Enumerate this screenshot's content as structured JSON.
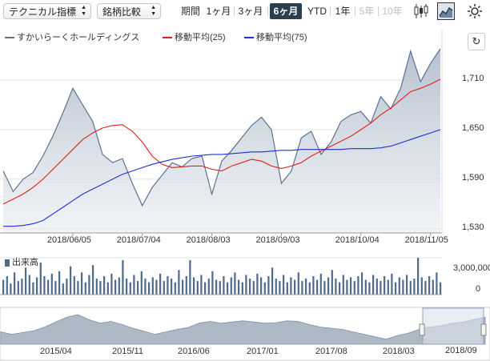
{
  "toolbar": {
    "chart_type_select": "テクニカル指標",
    "compare_select": "銘柄比較",
    "period_label": "期間",
    "periods": [
      {
        "label": "1ヶ月",
        "state": "normal"
      },
      {
        "label": "3ヶ月",
        "state": "normal"
      },
      {
        "label": "6ヶ月",
        "state": "active"
      },
      {
        "label": "YTD",
        "state": "normal"
      },
      {
        "label": "1年",
        "state": "normal"
      },
      {
        "label": "5年",
        "state": "disabled"
      },
      {
        "label": "10年",
        "state": "disabled"
      }
    ],
    "icons": [
      "candlestick-chart-icon",
      "area-chart-icon",
      "settings-gear-icon"
    ]
  },
  "legend": {
    "price": "すかいらーくホールディングス",
    "ma25": "移動平均(25)",
    "ma75": "移動平均(75)"
  },
  "colors": {
    "price_line": "#5a7391",
    "price_fill_top": "#a9b6c6",
    "ma25": "#e0201a",
    "ma75": "#1e2fd0",
    "volume_bar": "#4e6a8c",
    "active_tab": "#2c3e50",
    "navigator_fill": "#aeb9c6"
  },
  "chart_data": [
    {
      "type": "line",
      "x": [
        "2018/05/07",
        "2018/05/10",
        "2018/05/15",
        "2018/05/18",
        "2018/05/23",
        "2018/05/28",
        "2018/06/01",
        "2018/06/06",
        "2018/06/11",
        "2018/06/14",
        "2018/06/19",
        "2018/06/22",
        "2018/06/27",
        "2018/07/02",
        "2018/07/05",
        "2018/07/10",
        "2018/07/13",
        "2018/07/18",
        "2018/07/23",
        "2018/07/26",
        "2018/07/31",
        "2018/08/03",
        "2018/08/08",
        "2018/08/13",
        "2018/08/16",
        "2018/08/21",
        "2018/08/24",
        "2018/08/29",
        "2018/09/03",
        "2018/09/06",
        "2018/09/11",
        "2018/09/14",
        "2018/09/19",
        "2018/09/24",
        "2018/09/28",
        "2018/10/03",
        "2018/10/08",
        "2018/10/11",
        "2018/10/16",
        "2018/10/19",
        "2018/10/24",
        "2018/10/29",
        "2018/11/01",
        "2018/11/05",
        "2018/11/07"
      ],
      "series": [
        {
          "name": "すかいらーくホールディングス",
          "values": [
            1600,
            1575,
            1590,
            1598,
            1618,
            1642,
            1670,
            1700,
            1680,
            1660,
            1620,
            1610,
            1615,
            1585,
            1558,
            1580,
            1595,
            1610,
            1605,
            1615,
            1618,
            1572,
            1612,
            1625,
            1640,
            1655,
            1665,
            1650,
            1585,
            1600,
            1640,
            1648,
            1620,
            1635,
            1660,
            1668,
            1672,
            1658,
            1690,
            1675,
            1700,
            1745,
            1708,
            1730,
            1748
          ]
        },
        {
          "name": "移動平均(25)",
          "values": [
            1560,
            1566,
            1572,
            1580,
            1590,
            1602,
            1614,
            1626,
            1638,
            1646,
            1652,
            1655,
            1656,
            1648,
            1635,
            1618,
            1608,
            1604,
            1605,
            1606,
            1606,
            1602,
            1600,
            1606,
            1610,
            1614,
            1612,
            1606,
            1603,
            1606,
            1610,
            1618,
            1624,
            1630,
            1636,
            1642,
            1650,
            1658,
            1668,
            1676,
            1686,
            1696,
            1700,
            1705,
            1711
          ]
        },
        {
          "name": "移動平均(75)",
          "values": [
            1533,
            1533,
            1534,
            1536,
            1540,
            1548,
            1556,
            1564,
            1572,
            1578,
            1584,
            1590,
            1596,
            1600,
            1604,
            1608,
            1611,
            1614,
            1616,
            1618,
            1619,
            1620,
            1620,
            1621,
            1622,
            1623,
            1623,
            1624,
            1625,
            1625,
            1626,
            1626,
            1626,
            1626,
            1626,
            1627,
            1627,
            1627,
            1628,
            1630,
            1634,
            1638,
            1642,
            1646,
            1650
          ]
        }
      ],
      "y_ticks": [
        "1,530",
        "1,590",
        "1,650",
        "1,710"
      ],
      "ylim": [
        1525,
        1772
      ],
      "x_ticks": [
        "2018/06/05",
        "2018/07/04",
        "2018/08/03",
        "2018/09/03",
        "2018/10/04",
        "2018/11/05"
      ],
      "grid": true,
      "legend": "top-left"
    },
    {
      "type": "bar",
      "title": "出来高",
      "values": [
        1200000,
        1500000,
        900000,
        1800000,
        1100000,
        1300000,
        2200000,
        1600000,
        1000000,
        1400000,
        2600000,
        1500000,
        1200000,
        1700000,
        1100000,
        1900000,
        900000,
        1300000,
        2300000,
        1500000,
        1100000,
        1800000,
        1000000,
        1600000,
        2400000,
        1300000,
        1100000,
        1500000,
        1000000,
        1700000,
        1200000,
        1400000,
        2800000,
        1300000,
        1000000,
        1600000,
        1100000,
        1900000,
        1300000,
        1000000,
        1400000,
        1200000,
        1700000,
        1100000,
        1500000,
        1300000,
        1000000,
        2000000,
        1200000,
        1500000,
        2800000,
        1400000,
        1100000,
        1600000,
        1000000,
        1300000,
        1900000,
        1200000,
        1100000,
        1500000,
        1000000,
        1400000,
        1800000,
        1200000,
        1000000,
        1600000,
        1300000,
        1100000,
        1700000,
        1400000,
        1000000,
        1500000,
        2200000,
        1300000,
        1100000,
        1600000,
        1000000,
        1400000,
        1200000,
        1800000,
        1100000,
        1300000,
        1000000,
        1500000,
        1200000,
        1700000,
        1100000,
        1400000,
        2000000,
        1300000,
        1000000,
        1600000,
        1200000,
        1400000,
        1100000,
        1500000,
        1800000,
        1200000,
        1000000,
        1600000,
        1300000,
        1100000,
        1500000,
        1200000,
        1700000,
        1000000,
        1400000,
        1200000,
        1600000,
        1100000,
        1300000,
        3000000,
        1400000,
        1100000,
        1500000,
        1200000,
        1800000,
        1000000
      ],
      "y_ticks": [
        "0",
        "3,000,000"
      ],
      "ylim": [
        0,
        3000000
      ]
    },
    {
      "type": "area",
      "x_ticks": [
        "2015/04",
        "2015/11",
        "2016/06",
        "2017/01",
        "2017/08",
        "2018/03"
      ],
      "values": [
        1620,
        1600,
        1615,
        1630,
        1660,
        1700,
        1740,
        1760,
        1720,
        1690,
        1705,
        1680,
        1650,
        1625,
        1600,
        1620,
        1640,
        1655,
        1690,
        1705,
        1690,
        1700,
        1710,
        1700,
        1690,
        1695,
        1710,
        1705,
        1680,
        1660,
        1650,
        1640,
        1620,
        1600,
        1580,
        1560,
        1590,
        1610,
        1640,
        1660,
        1670,
        1690,
        1700,
        1720,
        1740
      ],
      "selected_range_label": "2018/09"
    }
  ]
}
